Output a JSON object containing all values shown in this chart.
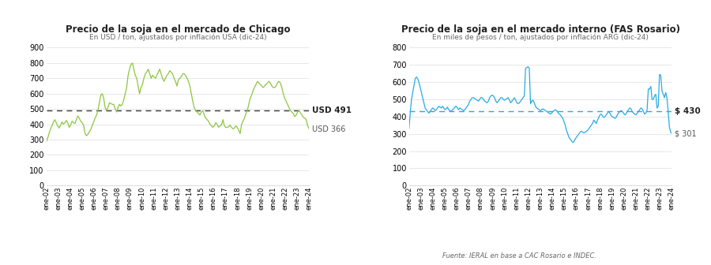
{
  "title1": "Precio de la soja en el mercado de Chicago",
  "subtitle1": "En USD / ton, ajustados por inflación USA (dic-24)",
  "title2": "Precio de la soja en el mercado interno (FAS Rosario)",
  "subtitle2": "En miles de pesos / ton, ajustados por inflación ARG (dic-24)",
  "source": "Fuente: IERAL en base a CAC Rosario e INDEC.",
  "xtick_labels": [
    "ene-02",
    "ene-03",
    "ene-04",
    "ene-05",
    "ene-06",
    "ene-07",
    "ene-08",
    "ene-09",
    "ene-10",
    "ene-11",
    "ene-12",
    "ene-13",
    "ene-14",
    "ene-15",
    "ene-16",
    "ene-17",
    "ene-18",
    "ene-19",
    "ene-20",
    "ene-21",
    "ene-22",
    "ene-23",
    "ene-24"
  ],
  "chicago_mean": 491,
  "chicago_last": 366,
  "chicago_mean_label": "USD 491",
  "chicago_last_label": "USD 366",
  "fas_mean": 430,
  "fas_last": 301,
  "fas_mean_label": "$ 430",
  "fas_last_label": "$ 301",
  "line_color1": "#8DC63F",
  "line_color2": "#29ABE2",
  "dashed_color1": "#333333",
  "dashed_color2": "#29ABE2",
  "background_color": "#FFFFFF",
  "grid_color": "#DDDDDD",
  "ylim1": [
    0,
    900
  ],
  "ylim2": [
    0,
    800
  ],
  "yticks1": [
    0,
    100,
    200,
    300,
    400,
    500,
    600,
    700,
    800,
    900
  ],
  "yticks2": [
    0,
    100,
    200,
    300,
    400,
    500,
    600,
    700,
    800
  ],
  "chicago_values": [
    285,
    310,
    340,
    370,
    390,
    415,
    430,
    410,
    390,
    375,
    395,
    415,
    400,
    410,
    425,
    410,
    380,
    395,
    420,
    410,
    405,
    430,
    455,
    440,
    420,
    410,
    395,
    340,
    325,
    335,
    350,
    365,
    390,
    415,
    440,
    460,
    490,
    540,
    590,
    600,
    570,
    510,
    490,
    510,
    540,
    535,
    530,
    530,
    500,
    480,
    510,
    530,
    520,
    530,
    560,
    600,
    640,
    720,
    760,
    790,
    800,
    760,
    720,
    700,
    650,
    600,
    640,
    660,
    700,
    730,
    740,
    760,
    730,
    700,
    720,
    710,
    700,
    720,
    740,
    760,
    730,
    700,
    680,
    700,
    720,
    730,
    750,
    740,
    730,
    700,
    680,
    650,
    690,
    700,
    710,
    730,
    730,
    720,
    700,
    680,
    650,
    600,
    550,
    510,
    490,
    480,
    470,
    460,
    480,
    490,
    460,
    440,
    430,
    420,
    400,
    390,
    380,
    390,
    410,
    400,
    380,
    390,
    395,
    430,
    390,
    380,
    380,
    385,
    395,
    380,
    370,
    375,
    390,
    380,
    360,
    340,
    400,
    420,
    440,
    470,
    490,
    530,
    570,
    590,
    620,
    640,
    660,
    680,
    670,
    660,
    650,
    640,
    650,
    660,
    670,
    680,
    670,
    650,
    640,
    640,
    650,
    670,
    680,
    670,
    640,
    600,
    570,
    550,
    530,
    510,
    490,
    480,
    470,
    450,
    460,
    480,
    490,
    475,
    460,
    445,
    440,
    430,
    390,
    370
  ],
  "fas_values": [
    330,
    420,
    500,
    540,
    580,
    620,
    630,
    620,
    600,
    570,
    540,
    510,
    480,
    450,
    440,
    430,
    420,
    430,
    440,
    450,
    445,
    435,
    440,
    450,
    460,
    455,
    450,
    460,
    450,
    440,
    445,
    455,
    440,
    435,
    430,
    440,
    445,
    455,
    460,
    450,
    440,
    450,
    445,
    440,
    435,
    440,
    450,
    460,
    470,
    490,
    500,
    510,
    510,
    505,
    500,
    495,
    490,
    500,
    510,
    510,
    500,
    490,
    485,
    480,
    490,
    510,
    520,
    525,
    520,
    510,
    490,
    480,
    490,
    500,
    510,
    510,
    500,
    495,
    500,
    505,
    510,
    495,
    480,
    490,
    500,
    510,
    495,
    480,
    475,
    480,
    490,
    500,
    510,
    520,
    680,
    685,
    690,
    680,
    475,
    490,
    495,
    480,
    460,
    450,
    445,
    440,
    435,
    440,
    445,
    440,
    435,
    430,
    425,
    420,
    415,
    420,
    430,
    435,
    440,
    435,
    425,
    415,
    410,
    400,
    390,
    370,
    350,
    320,
    300,
    280,
    270,
    260,
    250,
    255,
    270,
    280,
    290,
    300,
    310,
    315,
    310,
    305,
    310,
    315,
    320,
    330,
    340,
    350,
    360,
    380,
    370,
    360,
    380,
    395,
    410,
    415,
    405,
    395,
    400,
    410,
    420,
    430,
    420,
    405,
    400,
    395,
    390,
    395,
    410,
    420,
    430,
    435,
    430,
    420,
    410,
    415,
    430,
    440,
    450,
    445,
    430,
    420,
    415,
    410,
    420,
    430,
    440,
    450,
    445,
    430,
    415,
    420,
    440,
    560,
    560,
    575,
    500,
    500,
    520,
    530,
    450,
    460,
    645,
    640,
    550,
    530,
    510,
    540,
    510,
    430,
    340,
    310,
    300
  ]
}
